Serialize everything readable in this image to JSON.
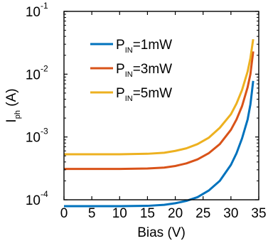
{
  "chart_data": {
    "type": "line",
    "xlabel": "Bias (V)",
    "ylabel_main": "I",
    "ylabel_sub": "ph",
    "ylabel_unit": " (A)",
    "xlim": [
      0,
      35
    ],
    "ylim": [
      0.0001,
      0.1
    ],
    "yscale": "log",
    "xticks": [
      0,
      5,
      10,
      15,
      20,
      25,
      30,
      35
    ],
    "yticks": [
      {
        "value": 0.0001,
        "base": "10",
        "exp": "-4"
      },
      {
        "value": 0.001,
        "base": "10",
        "exp": "-3"
      },
      {
        "value": 0.01,
        "base": "10",
        "exp": "-2"
      },
      {
        "value": 0.1,
        "base": "10",
        "exp": "-1"
      }
    ],
    "grid": false,
    "legend_position": "top-left",
    "series": [
      {
        "name_prefix": "P",
        "name_sub": "IN",
        "name_suffix": "=1mW",
        "color": "#0072bd",
        "x": [
          0,
          5,
          10,
          15,
          18,
          20,
          22,
          24,
          26,
          28,
          30,
          31,
          32,
          33,
          33.5,
          34
        ],
        "y": [
          7.9e-05,
          7.9e-05,
          7.9e-05,
          8e-05,
          8.3e-05,
          8.8e-05,
          9.6e-05,
          0.00011,
          0.00014,
          0.0002,
          0.00036,
          0.00055,
          0.00095,
          0.0019,
          0.0033,
          0.0078
        ]
      },
      {
        "name_prefix": "P",
        "name_sub": "IN",
        "name_suffix": "=3mW",
        "color": "#d95319",
        "x": [
          0,
          5,
          10,
          15,
          18,
          20,
          22,
          24,
          26,
          28,
          30,
          31,
          32,
          33,
          33.5,
          34
        ],
        "y": [
          0.00031,
          0.00031,
          0.00031,
          0.000315,
          0.000325,
          0.000345,
          0.00038,
          0.00044,
          0.00055,
          0.00077,
          0.0013,
          0.0019,
          0.0031,
          0.0062,
          0.01,
          0.023
        ]
      },
      {
        "name_prefix": "P",
        "name_sub": "IN",
        "name_suffix": "=5mW",
        "color": "#edb120",
        "x": [
          0,
          5,
          10,
          15,
          18,
          20,
          22,
          24,
          26,
          28,
          30,
          31,
          32,
          33,
          33.5,
          34
        ],
        "y": [
          0.00053,
          0.00053,
          0.00053,
          0.00054,
          0.00056,
          0.0006,
          0.00066,
          0.00077,
          0.00097,
          0.0014,
          0.0023,
          0.0034,
          0.0056,
          0.011,
          0.018,
          0.036
        ]
      }
    ]
  }
}
